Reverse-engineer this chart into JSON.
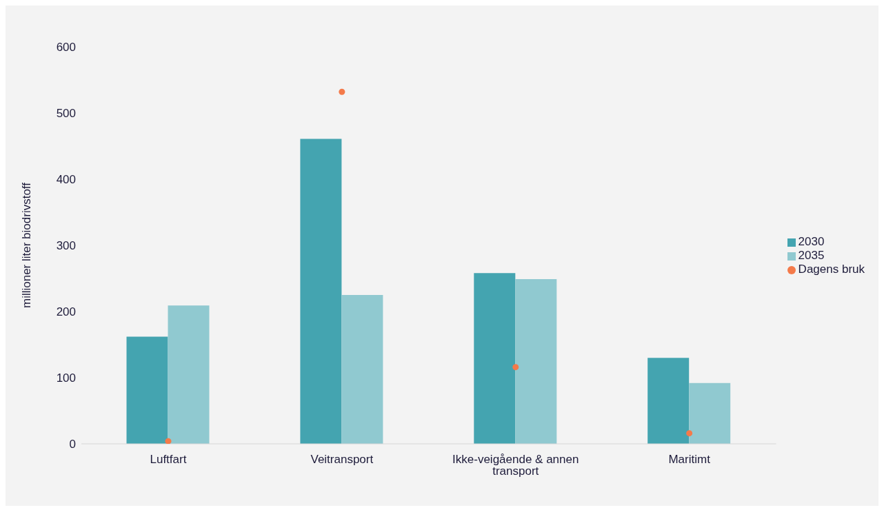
{
  "chart_data": {
    "type": "bar",
    "ylabel": "millioner liter biodrivstoff",
    "categories": [
      "Luftfart",
      "Veitransport",
      "Ikke-veigående & annen transport",
      "Maritimt"
    ],
    "series": [
      {
        "name": "2030",
        "color": "#44a4b0",
        "values": [
          162,
          461,
          258,
          130
        ]
      },
      {
        "name": "2035",
        "color": "#90c9d0",
        "values": [
          209,
          225,
          249,
          92
        ]
      },
      {
        "name": "Dagens bruk",
        "type": "scatter",
        "color": "#f47a4a",
        "x": [
          "Luftfart",
          "Veitransport",
          "Ikke-veigående & annen transport",
          "Maritimt"
        ],
        "values": [
          4,
          532,
          116,
          16
        ]
      }
    ],
    "ylim": [
      0,
      600
    ],
    "yticks": [
      0,
      100,
      200,
      300,
      400,
      500,
      600
    ],
    "grid": false,
    "legend": "right",
    "marker": "circle"
  }
}
